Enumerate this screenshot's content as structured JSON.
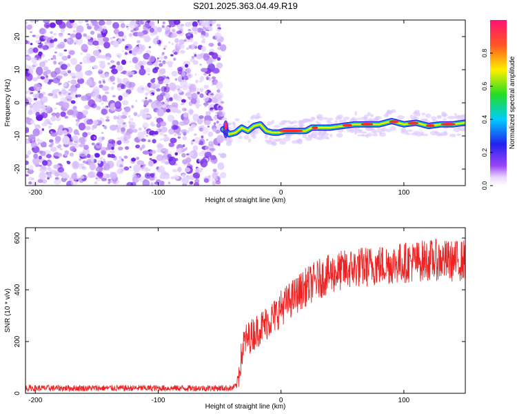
{
  "chart_data": [
    {
      "type": "heatmap",
      "title": "S201.2025.363.04.49.R19",
      "xlabel": "Height of straight line (km)",
      "ylabel": "Frequency (Hz)",
      "xlim": [
        -208,
        150
      ],
      "ylim": [
        -25,
        25
      ],
      "xticks": [
        -200,
        -100,
        0,
        100
      ],
      "yticks": [
        -20,
        -10,
        0,
        10,
        20
      ],
      "noise_region_x": [
        -208,
        -47
      ],
      "signal_track": {
        "x": [
          -47,
          -42,
          -37,
          -32,
          -27,
          -22,
          -17,
          -12,
          -7,
          -2,
          3,
          10,
          20,
          25,
          30,
          40,
          50,
          60,
          70,
          80,
          90,
          100,
          110,
          120,
          130,
          140,
          150
        ],
        "freq_hz": [
          -8,
          -9.5,
          -9,
          -7.5,
          -8.5,
          -7,
          -6.5,
          -8.5,
          -9,
          -9,
          -8.5,
          -8.5,
          -8.5,
          -7.5,
          -7.5,
          -7.5,
          -7,
          -6.5,
          -6.5,
          -6.5,
          -5.5,
          -6.5,
          -6,
          -7,
          -6.5,
          -6.5,
          -6
        ]
      },
      "colorbar": {
        "label": "Normalized spectral amplitude",
        "ticks": [
          "0.0",
          "0.2",
          "0.4",
          "0.6",
          "0.8"
        ]
      }
    },
    {
      "type": "line",
      "xlabel": "Height of straight line (km)",
      "ylabel": "SNR (10 * v/v)",
      "xlim": [
        -208,
        150
      ],
      "ylim": [
        0,
        640
      ],
      "xticks": [
        -200,
        -100,
        0,
        100
      ],
      "yticks": [
        0,
        200,
        400,
        600
      ],
      "color": "#ee2222",
      "series": [
        {
          "name": "SNR",
          "x": [
            -208,
            -180,
            -150,
            -120,
            -90,
            -60,
            -40,
            -36,
            -33,
            -30,
            -25,
            -20,
            -15,
            -10,
            -5,
            0,
            10,
            20,
            30,
            40,
            50,
            60,
            70,
            80,
            90,
            100,
            110,
            120,
            130,
            140,
            150
          ],
          "values": [
            20,
            20,
            20,
            20,
            20,
            20,
            20,
            30,
            120,
            200,
            220,
            240,
            260,
            280,
            300,
            330,
            370,
            410,
            440,
            460,
            475,
            485,
            490,
            495,
            500,
            505,
            510,
            515,
            515,
            510,
            515
          ]
        }
      ]
    }
  ]
}
